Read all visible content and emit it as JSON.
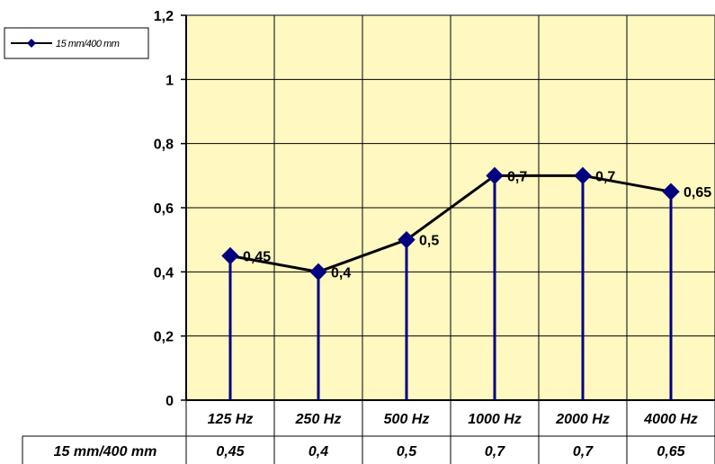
{
  "chart_data": {
    "type": "line",
    "categories": [
      "125 Hz",
      "250 Hz",
      "500 Hz",
      "1000 Hz",
      "2000 Hz",
      "4000 Hz"
    ],
    "series": [
      {
        "name": "15 mm/400 mm",
        "values": [
          0.45,
          0.4,
          0.5,
          0.7,
          0.7,
          0.65
        ],
        "value_labels": [
          "0,45",
          "0,4",
          "0,5",
          "0,7",
          "0,7",
          "0,65"
        ]
      }
    ],
    "y_ticks": [
      "0",
      "0,2",
      "0,4",
      "0,6",
      "0,8",
      "1",
      "1,2"
    ],
    "ylim": [
      0,
      1.2
    ],
    "grid": true,
    "legend": "top-left",
    "drop_lines": true,
    "data_table": {
      "row_label": "15 mm/400 mm",
      "values": [
        "0,45",
        "0,4",
        "0,5",
        "0,7",
        "0,7",
        "0,65"
      ]
    },
    "colors": {
      "plot_background": "#FFF8C0",
      "line": "#000000",
      "marker": "#000080",
      "drop_line": "#000080",
      "grid": "#000000"
    }
  }
}
